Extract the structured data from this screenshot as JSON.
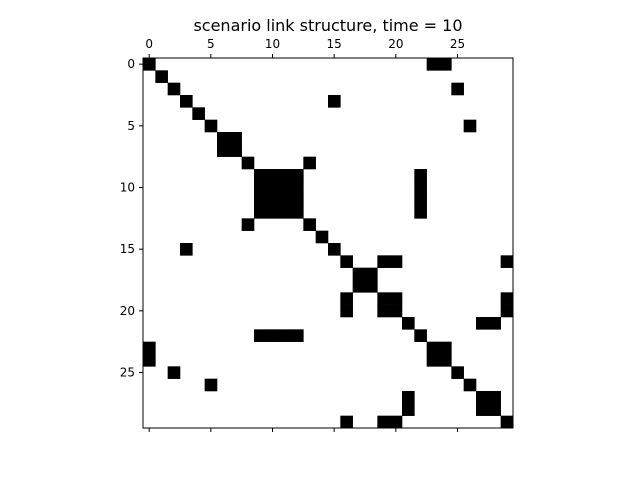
{
  "chart_data": {
    "type": "heatmap",
    "title": "scenario link structure, time = 10",
    "size": 30,
    "x_ticks": [
      0,
      5,
      10,
      15,
      20,
      25
    ],
    "y_ticks": [
      0,
      5,
      10,
      15,
      20,
      25
    ],
    "x_tick_position": "top",
    "y_tick_position": "left",
    "colors": {
      "filled": "#000000",
      "empty": "#ffffff",
      "frame": "#000000"
    },
    "filled_cells": [
      [
        0,
        0
      ],
      [
        0,
        23
      ],
      [
        0,
        24
      ],
      [
        1,
        1
      ],
      [
        2,
        2
      ],
      [
        2,
        25
      ],
      [
        3,
        3
      ],
      [
        3,
        15
      ],
      [
        4,
        4
      ],
      [
        5,
        5
      ],
      [
        5,
        26
      ],
      [
        6,
        6
      ],
      [
        6,
        7
      ],
      [
        7,
        6
      ],
      [
        7,
        7
      ],
      [
        8,
        8
      ],
      [
        8,
        13
      ],
      [
        9,
        9
      ],
      [
        9,
        10
      ],
      [
        9,
        11
      ],
      [
        9,
        12
      ],
      [
        9,
        22
      ],
      [
        10,
        9
      ],
      [
        10,
        10
      ],
      [
        10,
        11
      ],
      [
        10,
        12
      ],
      [
        10,
        22
      ],
      [
        11,
        9
      ],
      [
        11,
        10
      ],
      [
        11,
        11
      ],
      [
        11,
        12
      ],
      [
        11,
        22
      ],
      [
        12,
        9
      ],
      [
        12,
        10
      ],
      [
        12,
        11
      ],
      [
        12,
        12
      ],
      [
        12,
        22
      ],
      [
        13,
        8
      ],
      [
        13,
        13
      ],
      [
        14,
        14
      ],
      [
        15,
        3
      ],
      [
        15,
        15
      ],
      [
        16,
        16
      ],
      [
        16,
        19
      ],
      [
        16,
        20
      ],
      [
        16,
        29
      ],
      [
        17,
        17
      ],
      [
        17,
        18
      ],
      [
        18,
        17
      ],
      [
        18,
        18
      ],
      [
        19,
        16
      ],
      [
        19,
        19
      ],
      [
        19,
        20
      ],
      [
        19,
        29
      ],
      [
        20,
        16
      ],
      [
        20,
        19
      ],
      [
        20,
        20
      ],
      [
        20,
        29
      ],
      [
        21,
        21
      ],
      [
        21,
        27
      ],
      [
        21,
        28
      ],
      [
        22,
        9
      ],
      [
        22,
        10
      ],
      [
        22,
        11
      ],
      [
        22,
        12
      ],
      [
        22,
        22
      ],
      [
        23,
        0
      ],
      [
        23,
        23
      ],
      [
        23,
        24
      ],
      [
        24,
        0
      ],
      [
        24,
        23
      ],
      [
        24,
        24
      ],
      [
        25,
        2
      ],
      [
        25,
        25
      ],
      [
        26,
        5
      ],
      [
        26,
        26
      ],
      [
        27,
        21
      ],
      [
        27,
        27
      ],
      [
        27,
        28
      ],
      [
        28,
        21
      ],
      [
        28,
        27
      ],
      [
        28,
        28
      ],
      [
        29,
        16
      ],
      [
        29,
        19
      ],
      [
        29,
        20
      ],
      [
        29,
        29
      ]
    ]
  }
}
